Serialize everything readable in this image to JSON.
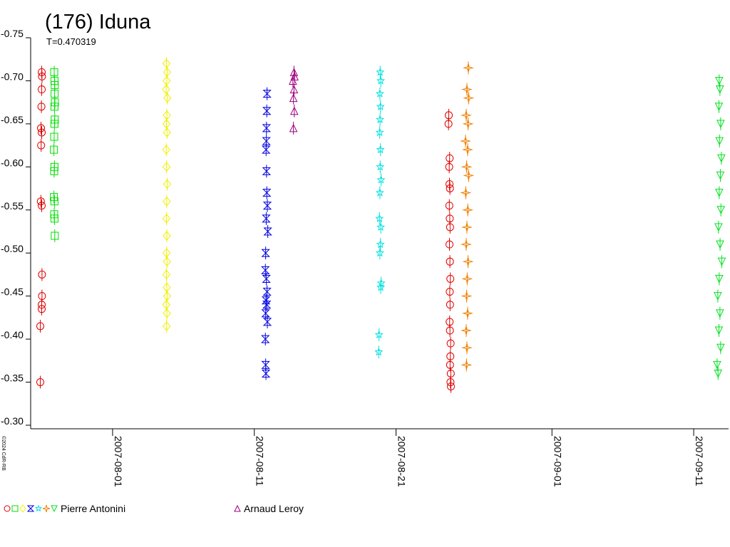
{
  "chart_data": {
    "type": "scatter",
    "title": "(176) Iduna",
    "subtitle": "T=0.470319",
    "copyright": "©2024 CdR-RB",
    "xlim": [
      2454307.72,
      2454356.96
    ],
    "xticks": [
      {
        "value": 2454313.5,
        "label": "2007-08-01"
      },
      {
        "value": 2454323.5,
        "label": "2007-08-11"
      },
      {
        "value": 2454333.5,
        "label": "2007-08-21"
      },
      {
        "value": 2454344.5,
        "label": "2007-09-01"
      },
      {
        "value": 2454354.5,
        "label": "2007-09-11"
      }
    ],
    "ylim": [
      -0.75,
      -0.3
    ],
    "invert_y": true,
    "yticks": [
      -0.75,
      {
        "value": -0.7,
        "label": "-0.70"
      },
      -0.65,
      {
        "value": -0.6,
        "label": "-0.60"
      },
      -0.55,
      {
        "value": -0.5,
        "label": "-0.50"
      },
      -0.45,
      {
        "value": -0.4,
        "label": "-0.40"
      },
      -0.35,
      {
        "value": -0.3,
        "label": "-0.30"
      }
    ],
    "series": [
      {
        "name": "Pierre Antonini",
        "color": "#e00000",
        "marker": "circle",
        "x": [
          2454308.5,
          2454308.52,
          2454308.5,
          2454308.48,
          2454308.45,
          2454308.5,
          2454308.46,
          2454308.44,
          2454308.5,
          2454308.52,
          2454308.52,
          2454308.5,
          2454308.5,
          2454308.4,
          2454308.4,
          2454337.22,
          2454337.2,
          2454337.28,
          2454337.25,
          2454337.27,
          2454337.3,
          2454337.26,
          2454337.29,
          2454337.31,
          2454337.27,
          2454337.3,
          2454337.33,
          2454337.29,
          2454337.31,
          2454337.28,
          2454337.3,
          2454337.35,
          2454337.33,
          2454337.31,
          2454337.36,
          2454337.34,
          2454337.37
        ],
        "values": [
          -0.71,
          -0.705,
          -0.69,
          -0.67,
          -0.645,
          -0.64,
          -0.625,
          -0.56,
          -0.555,
          -0.475,
          -0.45,
          -0.44,
          -0.435,
          -0.415,
          -0.35,
          -0.66,
          -0.65,
          -0.61,
          -0.6,
          -0.58,
          -0.575,
          -0.555,
          -0.54,
          -0.53,
          -0.51,
          -0.49,
          -0.47,
          -0.455,
          -0.44,
          -0.42,
          -0.41,
          -0.395,
          -0.38,
          -0.37,
          -0.36,
          -0.35,
          -0.345
        ]
      },
      {
        "name": "Pierre Antonini",
        "color": "#00e000",
        "marker": "square",
        "x": [
          2454309.38,
          2454309.4,
          2454309.42,
          2454309.41,
          2454309.43,
          2454309.4,
          2454309.42,
          2454309.4,
          2454309.38,
          2454309.36,
          2454309.4,
          2454309.38,
          2454309.36,
          2454309.4,
          2454309.38,
          2454309.4,
          2454309.42
        ],
        "values": [
          -0.71,
          -0.7,
          -0.695,
          -0.685,
          -0.675,
          -0.67,
          -0.655,
          -0.65,
          -0.635,
          -0.62,
          -0.6,
          -0.595,
          -0.565,
          -0.56,
          -0.545,
          -0.54,
          -0.52
        ]
      },
      {
        "name": "Pierre Antonini",
        "color": "#f0f000",
        "marker": "diamond",
        "x": [
          2454317.3,
          2454317.35,
          2454317.32,
          2454317.28,
          2454317.36,
          2454317.33,
          2454317.3,
          2454317.34,
          2454317.29,
          2454317.31,
          2454317.35,
          2454317.32,
          2454317.3,
          2454317.33,
          2454317.31,
          2454317.34,
          2454317.3,
          2454317.32,
          2454317.35,
          2454317.29,
          2454317.33,
          2454317.31
        ],
        "values": [
          -0.72,
          -0.71,
          -0.7,
          -0.69,
          -0.68,
          -0.66,
          -0.65,
          -0.64,
          -0.62,
          -0.6,
          -0.58,
          -0.56,
          -0.54,
          -0.52,
          -0.5,
          -0.49,
          -0.475,
          -0.46,
          -0.45,
          -0.44,
          -0.43,
          -0.415
        ]
      },
      {
        "name": "Pierre Antonini",
        "color": "#0000e0",
        "marker": "bowtie",
        "x": [
          2454324.4,
          2454324.38,
          2454324.36,
          2454324.35,
          2454324.33,
          2454324.36,
          2454324.38,
          2454324.42,
          2454324.34,
          2454324.45,
          2454324.3,
          2454324.28,
          2454324.35,
          2454324.4,
          2454324.32,
          2454324.38,
          2454324.3,
          2454324.42,
          2454324.28,
          2454324.3,
          2454324.32
        ],
        "values": [
          -0.685,
          -0.665,
          -0.645,
          -0.63,
          -0.62,
          -0.595,
          -0.57,
          -0.555,
          -0.54,
          -0.525,
          -0.5,
          -0.48,
          -0.47,
          -0.455,
          -0.445,
          -0.44,
          -0.43,
          -0.42,
          -0.4,
          -0.37,
          -0.36
        ]
      },
      {
        "name": "Arnaud Leroy",
        "color": "#a00080",
        "marker": "triangle-up",
        "x": [
          2454326.3,
          2454326.34,
          2454326.22,
          2454326.3,
          2454326.26,
          2454326.32,
          2454326.26
        ],
        "values": [
          -0.71,
          -0.705,
          -0.7,
          -0.69,
          -0.68,
          -0.665,
          -0.645
        ]
      },
      {
        "name": "Pierre Antonini",
        "color": "#00e0e0",
        "marker": "star",
        "x": [
          2454332.38,
          2454332.42,
          2454332.36,
          2454332.4,
          2454332.37,
          2454332.35,
          2454332.4,
          2454332.38,
          2454332.44,
          2454332.36,
          2454332.33,
          2454332.42,
          2454332.4,
          2454332.36,
          2454332.45,
          2454332.42,
          2454332.3,
          2454332.28
        ],
        "values": [
          -0.71,
          -0.7,
          -0.685,
          -0.67,
          -0.655,
          -0.64,
          -0.62,
          -0.6,
          -0.585,
          -0.57,
          -0.54,
          -0.53,
          -0.51,
          -0.5,
          -0.465,
          -0.46,
          -0.405,
          -0.385
        ]
      },
      {
        "name": "Pierre Antonini",
        "color": "#f08000",
        "marker": "asterisk",
        "x": [
          2454338.6,
          2454338.5,
          2454338.62,
          2454338.45,
          2454338.58,
          2454338.4,
          2454338.55,
          2454338.48,
          2454338.62,
          2454338.42,
          2454338.56,
          2454338.5,
          2454338.45,
          2454338.58,
          2454338.52,
          2454338.48,
          2454338.55,
          2454338.45,
          2454338.5,
          2454338.47
        ],
        "values": [
          -0.715,
          -0.69,
          -0.68,
          -0.66,
          -0.65,
          -0.63,
          -0.62,
          -0.6,
          -0.59,
          -0.57,
          -0.55,
          -0.53,
          -0.51,
          -0.49,
          -0.47,
          -0.45,
          -0.43,
          -0.41,
          -0.39,
          -0.37
        ]
      },
      {
        "name": "Pierre Antonini",
        "color": "#00e020",
        "marker": "triangle-down",
        "x": [
          2454356.3,
          2454356.35,
          2454356.28,
          2454356.4,
          2454356.32,
          2454356.45,
          2454356.38,
          2454356.3,
          2454356.42,
          2454356.25,
          2454356.36,
          2454356.48,
          2454356.3,
          2454356.2,
          2454356.35,
          2454356.28,
          2454356.4,
          2454356.15,
          2454356.22
        ],
        "values": [
          -0.7,
          -0.69,
          -0.67,
          -0.65,
          -0.63,
          -0.61,
          -0.59,
          -0.57,
          -0.55,
          -0.53,
          -0.51,
          -0.49,
          -0.47,
          -0.45,
          -0.43,
          -0.41,
          -0.39,
          -0.37,
          -0.36
        ]
      }
    ]
  }
}
